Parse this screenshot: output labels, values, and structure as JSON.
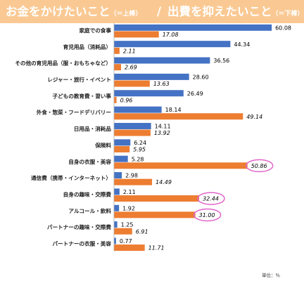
{
  "header": {
    "title_left": "お金をかけたいこと",
    "title_left_sub": "（＝上棒）",
    "title_sep": "/",
    "title_right": "出費を抑えたいこと",
    "title_right_sub": "（＝下棒）"
  },
  "unit_label": "単位：％",
  "chart_data": {
    "type": "bar",
    "orientation": "horizontal",
    "xlim": [
      0,
      65
    ],
    "grid": false,
    "categories": [
      "家庭での食事",
      "育児用品（消耗品）",
      "その他の育児用品（服・おもちゃなど）",
      "レジャー・旅行・イベント",
      "子どもの教育費・習い事",
      "外食・惣菜・フードデリバリー",
      "日用品・消耗品",
      "保険料",
      "自身の衣服・美容",
      "通信費（携帯・インターネット）",
      "自身の趣味・交際費",
      "アルコール・飲料",
      "パートナーの趣味・交際費",
      "パートナーの衣服・美容"
    ],
    "series": [
      {
        "name": "お金をかけたいこと",
        "color": "#4472c4",
        "label_style": "normal",
        "values": [
          60.08,
          44.34,
          36.56,
          28.6,
          26.49,
          18.14,
          14.11,
          6.24,
          5.28,
          2.98,
          2.11,
          1.92,
          1.25,
          0.77
        ]
      },
      {
        "name": "出費を抑えたいこと",
        "color": "#ed7d31",
        "label_style": "italic",
        "values": [
          17.08,
          2.11,
          2.69,
          13.63,
          0.96,
          49.14,
          13.92,
          5.95,
          50.86,
          14.49,
          32.44,
          31.0,
          6.91,
          11.71
        ]
      }
    ],
    "highlighted_labels": [
      {
        "category": "自身の衣服・美容",
        "series": 1
      },
      {
        "category": "自身の趣味・交際費",
        "series": 1
      },
      {
        "category": "アルコール・飲料",
        "series": 1
      }
    ],
    "highlight_color": "#e066c9"
  }
}
